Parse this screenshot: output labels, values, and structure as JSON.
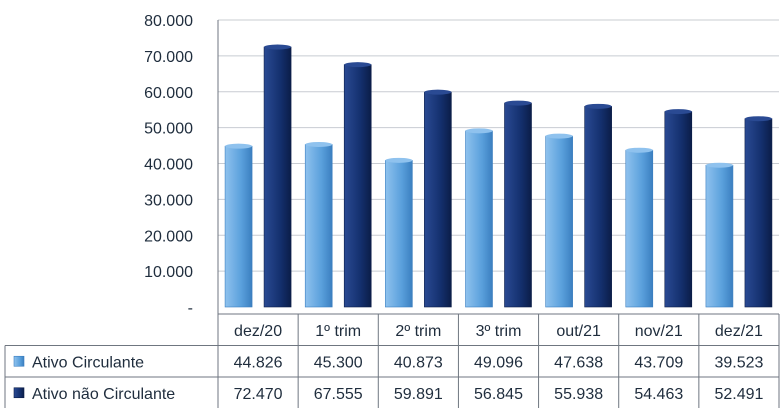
{
  "chart_data": {
    "type": "bar",
    "categories": [
      "dez/20",
      "1º trim",
      "2º trim",
      "3º trim",
      "out/21",
      "nov/21",
      "dez/21"
    ],
    "series": [
      {
        "name": "Ativo Circulante",
        "values": [
          "44.826",
          "45.300",
          "40.873",
          "49.096",
          "47.638",
          "43.709",
          "39.523"
        ],
        "numeric": [
          44826,
          45300,
          40873,
          49096,
          47638,
          43709,
          39523
        ],
        "color": "#5aa0dc",
        "color_light": "#8fc2ee",
        "color_dark": "#3b7fc0"
      },
      {
        "name": "Ativo não Circulante",
        "values": [
          "72.470",
          "67.555",
          "59.891",
          "56.845",
          "55.938",
          "54.463",
          "52.491"
        ],
        "numeric": [
          72470,
          67555,
          59891,
          56845,
          55938,
          54463,
          52491
        ],
        "color": "#14306e",
        "color_light": "#2a4a93",
        "color_dark": "#0b1d48"
      }
    ],
    "yticks": [
      "-",
      "10.000",
      "20.000",
      "30.000",
      "40.000",
      "50.000",
      "60.000",
      "70.000",
      "80.000"
    ],
    "ylim": [
      0,
      80000
    ],
    "grid": true,
    "legend": "data-table"
  }
}
